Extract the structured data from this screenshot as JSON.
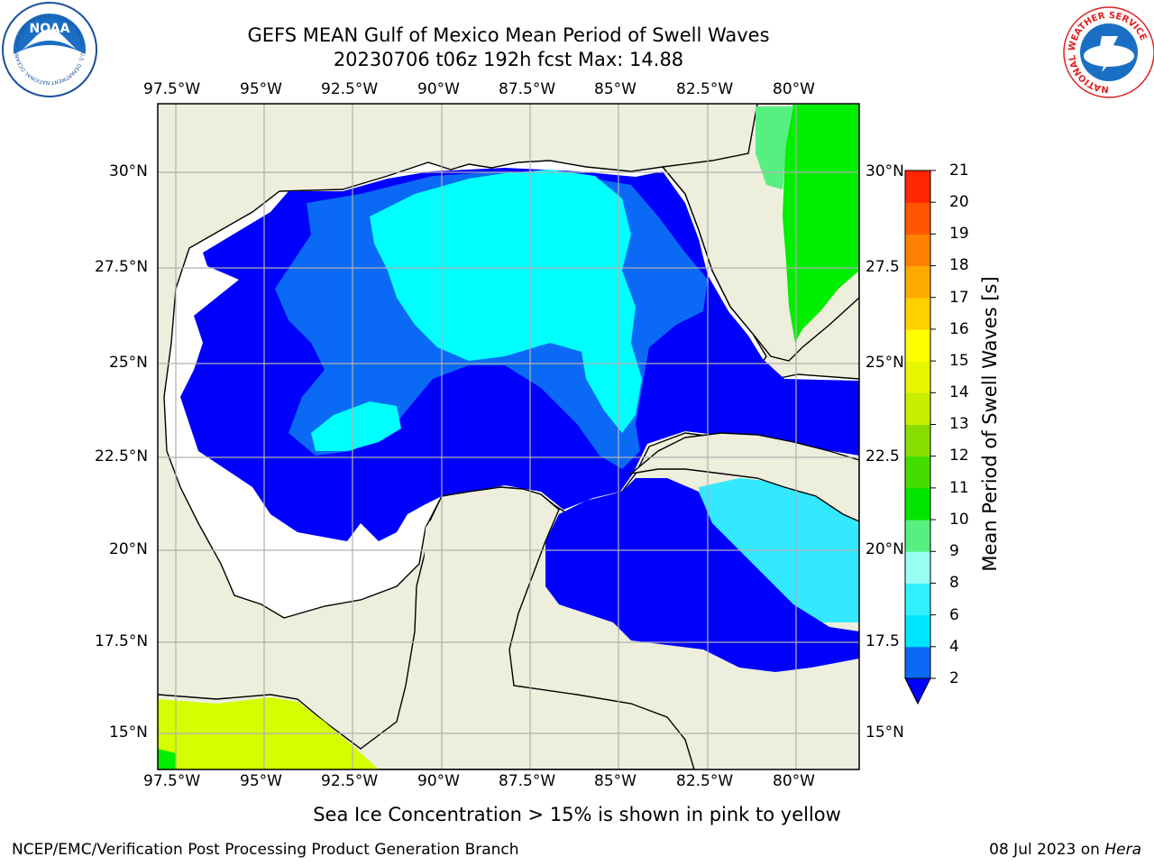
{
  "title_line1": "GEFS MEAN Gulf of Mexico Mean Period of Swell Waves",
  "title_line2": "20230706 t06z 192h fcst   Max: 14.88",
  "lon_labels": [
    "97.5°W",
    "95°W",
    "92.5°W",
    "90°W",
    "87.5°W",
    "85°W",
    "82.5°W",
    "80°W"
  ],
  "lat_labels_left": [
    "30°N",
    "27.5°N",
    "25°N",
    "22.5°N",
    "20°N",
    "17.5°N",
    "15°N"
  ],
  "lat_labels_right": [
    "30°N",
    "27.5",
    "25°N",
    "22.5",
    "20°N",
    "17.5",
    "15°N"
  ],
  "colorbar": {
    "title": "Mean Period of Swell Waves [s]",
    "levels": [
      "2",
      "4",
      "6",
      "8",
      "9",
      "10",
      "11",
      "12",
      "13",
      "14",
      "15",
      "16",
      "17",
      "18",
      "19",
      "20",
      "21"
    ],
    "colors": [
      "#0a6af5",
      "#00e5ff",
      "#33f0ff",
      "#99fff2",
      "#55f080",
      "#00e600",
      "#44dd00",
      "#88dd00",
      "#c8ee00",
      "#e8f500",
      "#ffff00",
      "#ffd000",
      "#ffaa00",
      "#ff8000",
      "#ff5500",
      "#ff2600"
    ],
    "extend_color": "#0000ff"
  },
  "note": "Sea Ice Concentration > 15% is shown in pink to yellow",
  "footer_left": "NCEP/EMC/Verification Post Processing Product Generation Branch",
  "footer_date": "08 Jul 2023 on ",
  "footer_machine": "Hera",
  "logos": {
    "noaa_text": "NOAA",
    "noaa_ring": "NATIONAL OCEANIC AND ATMOSPHERIC ADMINISTRATION · U.S. DEPARTMENT OF COMMERCE",
    "nws_ring": "NATIONAL WEATHER SERVICE"
  },
  "colors": {
    "land": "#eeeedd",
    "water_deep": "#0000ff",
    "water_mid": "#0a6af5",
    "water_cyan": "#00ffff",
    "caribbean_light": "#33e8ff",
    "atlantic_green": "#00ee00",
    "pacific_yellow": "#d4ff00"
  }
}
